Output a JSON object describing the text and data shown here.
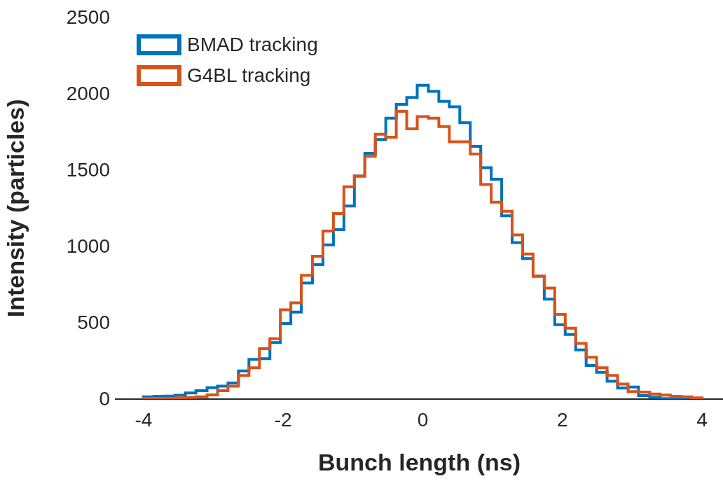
{
  "chart_data": {
    "type": "histogram",
    "xlabel": "Bunch length (ns)",
    "ylabel": "Intensity (particles)",
    "bins": [
      -4,
      -3.85,
      -3.7,
      -3.55,
      -3.4,
      -3.25,
      -3.09,
      -2.94,
      -2.79,
      -2.64,
      -2.49,
      -2.34,
      -2.19,
      -2.04,
      -1.89,
      -1.74,
      -1.58,
      -1.43,
      -1.28,
      -1.13,
      -0.98,
      -0.83,
      -0.68,
      -0.53,
      -0.38,
      -0.23,
      -0.08,
      0.08,
      0.23,
      0.38,
      0.53,
      0.68,
      0.83,
      0.98,
      1.13,
      1.28,
      1.43,
      1.58,
      1.74,
      1.89,
      2.04,
      2.19,
      2.34,
      2.49,
      2.64,
      2.79,
      2.94,
      3.09,
      3.25,
      3.4,
      3.55,
      3.7,
      3.85,
      4
    ],
    "series": [
      {
        "name": "BMAD tracking",
        "color": "#0072bd",
        "values": [
          15,
          18,
          20,
          25,
          40,
          55,
          75,
          85,
          105,
          185,
          260,
          265,
          370,
          495,
          570,
          760,
          880,
          1010,
          1110,
          1265,
          1460,
          1610,
          1700,
          1840,
          1930,
          1975,
          2055,
          2015,
          1950,
          1915,
          1810,
          1655,
          1515,
          1440,
          1200,
          1025,
          920,
          805,
          655,
          487,
          423,
          322,
          220,
          175,
          117,
          72,
          79,
          23,
          12,
          3,
          3,
          5,
          5
        ]
      },
      {
        "name": "G4BL tracking",
        "color": "#d95319",
        "values": [
          5,
          5,
          5,
          8,
          10,
          15,
          28,
          55,
          85,
          155,
          205,
          330,
          395,
          585,
          630,
          810,
          935,
          1100,
          1215,
          1390,
          1460,
          1590,
          1735,
          1715,
          1885,
          1770,
          1850,
          1840,
          1785,
          1685,
          1685,
          1605,
          1405,
          1290,
          1230,
          1075,
          950,
          805,
          727,
          555,
          464,
          365,
          274,
          205,
          155,
          99,
          49,
          46,
          33,
          26,
          18,
          15,
          8
        ]
      }
    ],
    "xlim": [
      -4.4,
      4.3
    ],
    "xticks": [
      -4,
      -2,
      0,
      2,
      4
    ],
    "ylim": [
      0,
      2500
    ],
    "yticks": [
      0,
      500,
      1000,
      1500,
      2000,
      2500
    ],
    "grid": false,
    "legend": "top left"
  }
}
